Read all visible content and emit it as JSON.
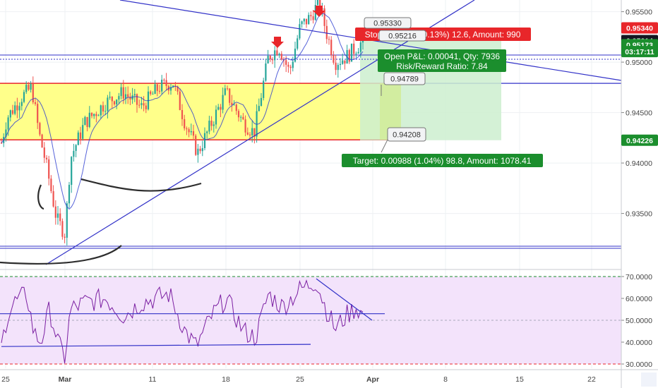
{
  "chart_data": {
    "type": "candlestick",
    "price_axis": {
      "ticks": [
        "0.95500",
        "0.95000",
        "0.94500",
        "0.94000",
        "0.93500"
      ],
      "tick_values": [
        0.955,
        0.95,
        0.945,
        0.94,
        0.935
      ],
      "range": [
        0.9306,
        0.9574
      ]
    },
    "price_badges": [
      {
        "label": "0.95340",
        "value": 0.9534,
        "color": "#e8262a"
      },
      {
        "label": "0.95214",
        "value": 0.95214,
        "color": "#131722"
      },
      {
        "label": "0.95173",
        "value": 0.95173,
        "color": "#1b8e2d"
      },
      {
        "label": "03:17:11",
        "value": 0.95105,
        "color": "#1b8e2d"
      },
      {
        "label": "0.94226",
        "value": 0.94226,
        "color": "#1b8e2d"
      }
    ],
    "rsi_axis": {
      "ticks": [
        "70.0000",
        "60.0000",
        "50.0000",
        "40.0000",
        "30.0000"
      ],
      "tick_values": [
        70,
        60,
        50,
        40,
        30
      ],
      "range": [
        28,
        74
      ]
    },
    "x_axis": {
      "ticks": [
        "25",
        "Mar",
        "11",
        "18",
        "25",
        "Apr",
        "8",
        "15",
        "22"
      ],
      "bold": [
        "Mar",
        "Apr"
      ]
    },
    "trade": {
      "stop_label": "Stop: 0.00126 (0.13%) 12.6, Amount: 990",
      "open_label_1": "Open P&L: 0.00041, Qty: 7936",
      "open_label_2": "Risk/Reward Ratio: 7.84",
      "target_label": "Target: 0.00988 (1.04%) 98.8, Amount: 1078.41",
      "entry": 0.95214,
      "stop": 0.9534,
      "target": 0.94226
    },
    "callouts": [
      "0.95330",
      "0.95216",
      "0.94789",
      "0.94208"
    ],
    "zone": {
      "top": 0.9479,
      "bottom": 0.9423,
      "color": "#ffff8a"
    },
    "colors": {
      "up": "#26a69a",
      "down": "#ef5350",
      "trend": "#3232c8",
      "rsi": "#7b1fa2",
      "rsi_bg": "#f3e3fb"
    }
  }
}
